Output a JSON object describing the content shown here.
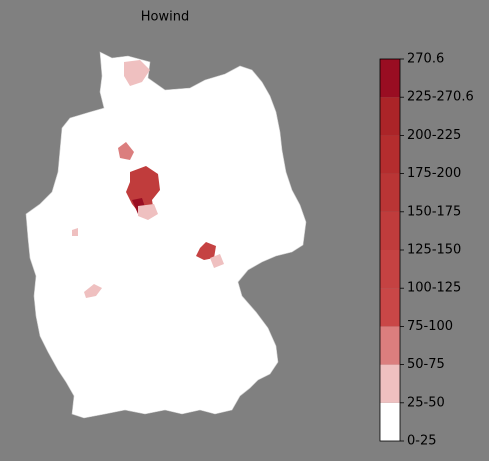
{
  "title": "Howind",
  "colorbar": {
    "labels": [
      "0-25",
      "25-50",
      "50-75",
      "75-100",
      "100-125",
      "125-150",
      "150-175",
      "175-200",
      "200-225",
      "225-270.6",
      "270.6"
    ],
    "colors": [
      "#ffffff",
      "#efc0c0",
      "#db7e7e",
      "#c94747",
      "#c54242",
      "#c03c3c",
      "#ba3535",
      "#b42d2e",
      "#ab2428",
      "#990d22"
    ]
  }
}
